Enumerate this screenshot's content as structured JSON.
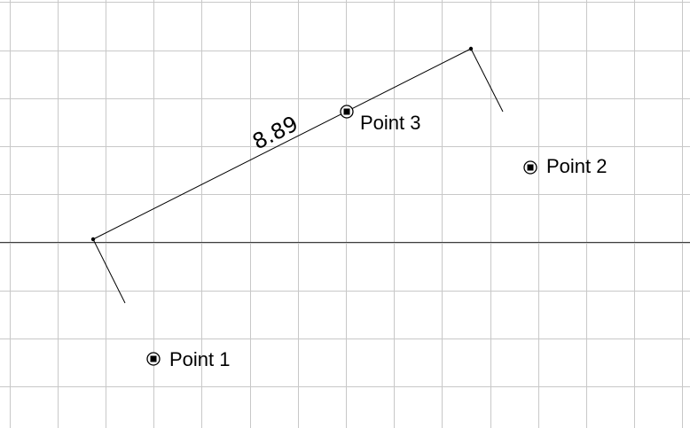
{
  "points": [
    {
      "id": "point-1",
      "label": "Point 1"
    },
    {
      "id": "point-2",
      "label": "Point 2"
    },
    {
      "id": "point-3",
      "label": "Point 3"
    }
  ],
  "dimension": {
    "value_text": "8.89"
  },
  "colors": {
    "grid": "#c8c8c8",
    "axis": "#3c3c3c",
    "ink": "#000000",
    "background": "#ffffff"
  }
}
